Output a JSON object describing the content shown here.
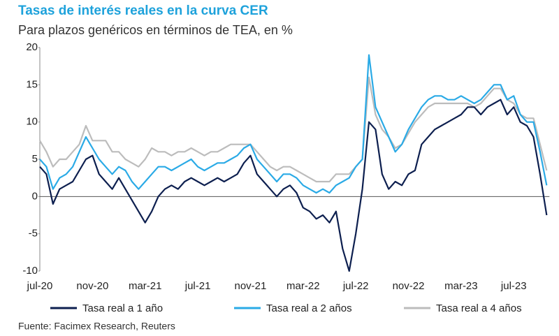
{
  "chart_data": {
    "type": "line",
    "title": "Tasas de interés reales en la curva CER",
    "subtitle": "Para plazos genéricos en términos de TEA, en %",
    "source": "Fuente: Facimex Research, Reuters",
    "categories": [
      "jul-20",
      null,
      null,
      null,
      null,
      null,
      null,
      null,
      "nov-20",
      null,
      null,
      null,
      null,
      null,
      null,
      null,
      "mar-21",
      null,
      null,
      null,
      null,
      null,
      null,
      null,
      "jul-21",
      null,
      null,
      null,
      null,
      null,
      null,
      null,
      "nov-21",
      null,
      null,
      null,
      null,
      null,
      null,
      null,
      "mar-22",
      null,
      null,
      null,
      null,
      null,
      null,
      null,
      "jul-22",
      null,
      null,
      null,
      null,
      null,
      null,
      null,
      "nov-22",
      null,
      null,
      null,
      null,
      null,
      null,
      null,
      "mar-23",
      null,
      null,
      null,
      null,
      null,
      null,
      null,
      "jul-23",
      null,
      null,
      null,
      null,
      null
    ],
    "series": [
      {
        "name": "Tasa real a 1 año",
        "color": "#0d1f4f",
        "values": [
          4,
          3,
          -1,
          1,
          1.5,
          2,
          3.5,
          5,
          5.5,
          3,
          2,
          1,
          2.5,
          1,
          -0.5,
          -2,
          -3.5,
          -2,
          0,
          1,
          1.5,
          1,
          2,
          2.5,
          2,
          1.5,
          2,
          2.5,
          2,
          2.5,
          3,
          4.5,
          5.5,
          3,
          2,
          1,
          0,
          1,
          1.5,
          0.5,
          -1.5,
          -2,
          -3,
          -2.5,
          -3.5,
          -2,
          -7,
          -10,
          -5,
          1,
          10,
          9,
          3,
          1,
          2,
          1.5,
          3,
          3.5,
          7,
          8,
          9,
          9.5,
          10,
          10.5,
          11,
          12,
          12,
          11,
          12,
          12.5,
          13,
          11,
          12,
          10,
          9.5,
          8,
          3,
          -2.5
        ]
      },
      {
        "name": "Tasa real a 2 años",
        "color": "#2aaae6",
        "values": [
          5,
          4,
          1,
          2.5,
          3,
          4,
          6,
          8,
          6.5,
          5,
          4,
          3,
          4,
          3.5,
          2,
          1,
          2,
          3,
          4,
          4,
          3.5,
          4,
          4.5,
          5,
          4,
          3.5,
          4,
          4.5,
          4.5,
          5,
          5.5,
          6.5,
          7,
          5,
          4,
          3,
          2,
          3,
          3,
          2.5,
          1.5,
          1,
          0.5,
          1,
          0.5,
          1.5,
          2,
          2.5,
          4,
          5,
          19,
          12,
          10,
          8,
          6,
          7,
          9,
          10.5,
          12,
          13,
          13.5,
          13.5,
          13,
          13,
          13.5,
          13,
          12.5,
          13,
          14,
          15,
          15,
          13,
          13.5,
          11,
          10,
          10,
          6,
          1.5
        ]
      },
      {
        "name": "Tasa real a 4 años",
        "color": "#bcbcbc",
        "values": [
          7.5,
          6,
          4,
          5,
          5,
          6,
          7,
          9.5,
          7.5,
          7.5,
          7.5,
          6,
          6,
          5,
          4.5,
          4,
          5,
          6.5,
          6,
          6,
          5.5,
          6,
          6,
          6.5,
          6,
          5.5,
          6,
          6,
          6.5,
          7,
          7,
          7,
          7,
          6,
          5,
          4,
          3.5,
          4,
          4,
          3.5,
          3,
          2.5,
          2,
          2,
          2,
          3,
          3,
          3,
          4,
          5,
          16,
          11,
          9,
          8,
          6.5,
          7,
          8.5,
          10,
          11,
          12,
          12.5,
          12.5,
          12.5,
          12.5,
          12.5,
          12.5,
          12,
          12.5,
          13.5,
          14.5,
          14.5,
          13,
          12.5,
          11,
          10.5,
          10.5,
          7,
          3.5
        ]
      }
    ],
    "ylim": [
      -10,
      20
    ],
    "yticks": [
      -10,
      -5,
      0,
      5,
      10,
      15,
      20
    ],
    "grid": false,
    "legend": "bottom"
  }
}
